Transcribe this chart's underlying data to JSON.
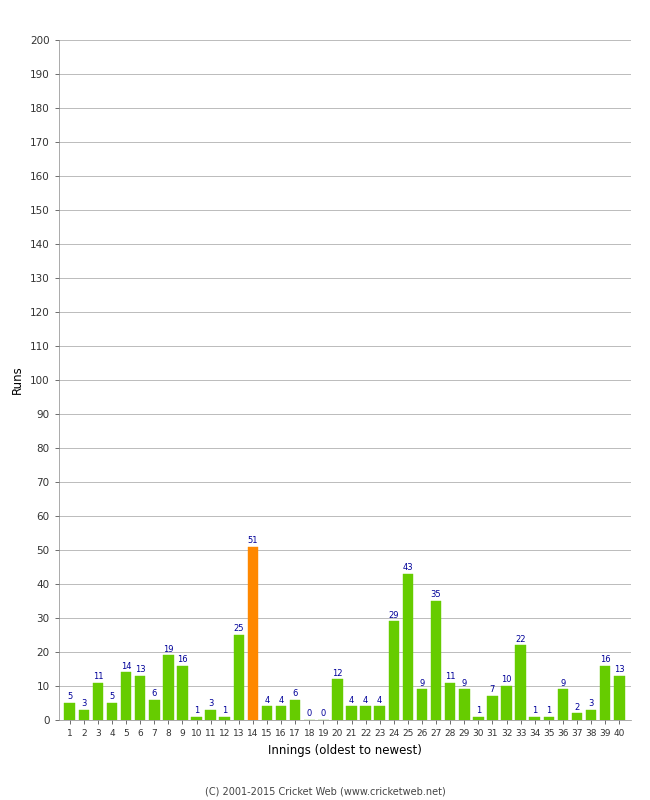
{
  "xlabel": "Innings (oldest to newest)",
  "ylabel": "Runs",
  "ylim": [
    0,
    200
  ],
  "yticks": [
    0,
    10,
    20,
    30,
    40,
    50,
    60,
    70,
    80,
    90,
    100,
    110,
    120,
    130,
    140,
    150,
    160,
    170,
    180,
    190,
    200
  ],
  "innings": [
    1,
    2,
    3,
    4,
    5,
    6,
    7,
    8,
    9,
    10,
    11,
    12,
    13,
    14,
    15,
    16,
    17,
    18,
    19,
    20,
    21,
    22,
    23,
    24,
    25,
    26,
    27,
    28,
    29,
    30,
    31,
    32,
    33,
    34,
    35,
    36,
    37,
    38,
    39,
    40
  ],
  "values": [
    5,
    3,
    11,
    5,
    14,
    13,
    6,
    19,
    16,
    1,
    3,
    1,
    25,
    51,
    4,
    4,
    6,
    0,
    0,
    12,
    4,
    4,
    4,
    29,
    43,
    9,
    35,
    11,
    9,
    1,
    7,
    10,
    22,
    1,
    1,
    9,
    2,
    3,
    16,
    13
  ],
  "bar_colors": [
    "#66cc00",
    "#66cc00",
    "#66cc00",
    "#66cc00",
    "#66cc00",
    "#66cc00",
    "#66cc00",
    "#66cc00",
    "#66cc00",
    "#66cc00",
    "#66cc00",
    "#66cc00",
    "#66cc00",
    "#ff8800",
    "#66cc00",
    "#66cc00",
    "#66cc00",
    "#66cc00",
    "#66cc00",
    "#66cc00",
    "#66cc00",
    "#66cc00",
    "#66cc00",
    "#66cc00",
    "#66cc00",
    "#66cc00",
    "#66cc00",
    "#66cc00",
    "#66cc00",
    "#66cc00",
    "#66cc00",
    "#66cc00",
    "#66cc00",
    "#66cc00",
    "#66cc00",
    "#66cc00",
    "#66cc00",
    "#66cc00",
    "#66cc00",
    "#66cc00"
  ],
  "label_color": "#000099",
  "bg_color": "#ffffff",
  "grid_color": "#bbbbbb",
  "footer": "(C) 2001-2015 Cricket Web (www.cricketweb.net)",
  "figsize": [
    6.5,
    8.0
  ],
  "dpi": 100
}
